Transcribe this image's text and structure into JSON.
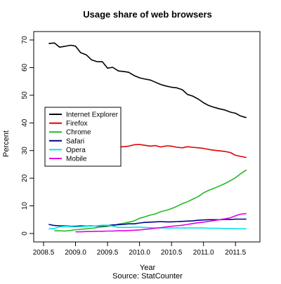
{
  "chart_data": {
    "type": "line",
    "title": "Usage share of web browsers",
    "xlabel": "Year",
    "ylabel": "Percent",
    "source": "Source: StatCounter",
    "xlim": [
      2008.5,
      2011.75
    ],
    "ylim": [
      0,
      70
    ],
    "xticks": [
      2008.5,
      2009.0,
      2009.5,
      2010.0,
      2010.5,
      2011.0,
      2011.5
    ],
    "xtick_labels": [
      "2008.5",
      "2009.0",
      "2009.5",
      "2010.0",
      "2010.5",
      "2011.0",
      "2011.5"
    ],
    "yticks": [
      0,
      10,
      20,
      30,
      40,
      50,
      60,
      70
    ],
    "ytick_labels": [
      "0",
      "10",
      "20",
      "30",
      "40",
      "50",
      "60",
      "70"
    ],
    "grid": false,
    "legend_position": "left",
    "series": [
      {
        "name": "Internet Explorer",
        "color": "#000000",
        "x": [
          2008.58,
          2008.67,
          2008.75,
          2008.83,
          2008.92,
          2009.0,
          2009.08,
          2009.17,
          2009.25,
          2009.33,
          2009.42,
          2009.5,
          2009.58,
          2009.67,
          2009.75,
          2009.83,
          2009.92,
          2010.0,
          2010.08,
          2010.17,
          2010.25,
          2010.33,
          2010.42,
          2010.5,
          2010.58,
          2010.67,
          2010.75,
          2010.83,
          2010.92,
          2011.0,
          2011.08,
          2011.17,
          2011.25,
          2011.33,
          2011.42,
          2011.5,
          2011.58,
          2011.67
        ],
        "values": [
          68.7,
          68.9,
          67.4,
          67.7,
          68.1,
          67.8,
          65.4,
          64.6,
          62.8,
          62.2,
          62.1,
          59.8,
          60.1,
          58.8,
          58.6,
          58.3,
          57.1,
          56.3,
          55.9,
          55.5,
          54.7,
          53.9,
          53.3,
          52.9,
          52.7,
          52.0,
          50.3,
          49.7,
          48.6,
          47.3,
          46.3,
          45.6,
          45.1,
          44.7,
          43.9,
          43.5,
          42.5,
          41.9
        ]
      },
      {
        "name": "Firefox",
        "color": "#dd0000",
        "x": [
          2008.58,
          2008.67,
          2008.75,
          2008.83,
          2008.92,
          2009.0,
          2009.08,
          2009.17,
          2009.25,
          2009.33,
          2009.42,
          2009.5,
          2009.58,
          2009.67,
          2009.75,
          2009.83,
          2009.92,
          2010.0,
          2010.08,
          2010.17,
          2010.25,
          2010.33,
          2010.42,
          2010.5,
          2010.58,
          2010.67,
          2010.75,
          2010.83,
          2010.92,
          2011.0,
          2011.08,
          2011.17,
          2011.25,
          2011.33,
          2011.42,
          2011.5,
          2011.58,
          2011.67
        ],
        "values": [
          26.1,
          26.0,
          25.8,
          25.9,
          26.2,
          26.1,
          26.6,
          27.2,
          29.2,
          29.4,
          30.3,
          30.4,
          31.1,
          31.3,
          31.4,
          31.6,
          32.1,
          32.2,
          31.9,
          31.6,
          31.8,
          31.3,
          31.7,
          31.6,
          31.2,
          31.0,
          31.4,
          31.2,
          31.0,
          30.8,
          30.4,
          30.1,
          29.9,
          29.7,
          29.3,
          28.3,
          27.9,
          27.5
        ]
      },
      {
        "name": "Chrome",
        "color": "#22bb22",
        "x": [
          2008.67,
          2008.75,
          2008.83,
          2008.92,
          2009.0,
          2009.08,
          2009.17,
          2009.25,
          2009.33,
          2009.42,
          2009.5,
          2009.58,
          2009.67,
          2009.75,
          2009.83,
          2009.92,
          2010.0,
          2010.08,
          2010.17,
          2010.25,
          2010.33,
          2010.42,
          2010.5,
          2010.58,
          2010.67,
          2010.75,
          2010.83,
          2010.92,
          2011.0,
          2011.08,
          2011.17,
          2011.25,
          2011.33,
          2011.42,
          2011.5,
          2011.58,
          2011.67
        ],
        "values": [
          1.0,
          1.0,
          0.9,
          1.1,
          1.4,
          1.5,
          1.7,
          1.9,
          2.1,
          2.4,
          2.6,
          2.8,
          3.4,
          3.7,
          4.1,
          4.6,
          5.5,
          6.0,
          6.7,
          7.1,
          7.9,
          8.4,
          9.0,
          9.8,
          10.8,
          11.5,
          12.4,
          13.4,
          14.7,
          15.6,
          16.4,
          17.2,
          18.0,
          19.1,
          20.2,
          21.6,
          23.0
        ]
      },
      {
        "name": "Safari",
        "color": "#00008b",
        "x": [
          2008.58,
          2008.67,
          2008.75,
          2008.83,
          2008.92,
          2009.0,
          2009.08,
          2009.17,
          2009.25,
          2009.33,
          2009.42,
          2009.5,
          2009.58,
          2009.67,
          2009.75,
          2009.83,
          2009.92,
          2010.0,
          2010.08,
          2010.17,
          2010.25,
          2010.33,
          2010.42,
          2010.5,
          2010.58,
          2010.67,
          2010.75,
          2010.83,
          2010.92,
          2011.0,
          2011.08,
          2011.17,
          2011.25,
          2011.33,
          2011.42,
          2011.5,
          2011.58,
          2011.67
        ],
        "values": [
          3.3,
          2.9,
          2.8,
          2.8,
          2.6,
          2.6,
          2.8,
          2.7,
          2.8,
          2.7,
          2.8,
          2.9,
          3.1,
          3.2,
          3.3,
          3.5,
          3.5,
          3.8,
          4.0,
          4.1,
          4.2,
          4.3,
          4.2,
          4.2,
          4.3,
          4.4,
          4.5,
          4.6,
          4.8,
          4.9,
          5.0,
          5.0,
          5.0,
          5.1,
          5.1,
          5.2,
          5.2,
          5.2
        ]
      },
      {
        "name": "Opera",
        "color": "#00e5e5",
        "x": [
          2008.58,
          2008.67,
          2008.75,
          2008.83,
          2008.92,
          2009.0,
          2009.08,
          2009.17,
          2009.25,
          2009.33,
          2009.42,
          2009.5,
          2009.58,
          2009.67,
          2009.75,
          2009.83,
          2009.92,
          2010.0,
          2010.08,
          2010.17,
          2010.25,
          2010.33,
          2010.42,
          2010.5,
          2010.58,
          2010.67,
          2010.75,
          2010.83,
          2010.92,
          2011.0,
          2011.08,
          2011.17,
          2011.25,
          2011.33,
          2011.42,
          2011.5,
          2011.58,
          2011.67
        ],
        "values": [
          1.7,
          1.8,
          2.4,
          2.6,
          2.5,
          2.4,
          2.5,
          2.6,
          2.7,
          2.8,
          3.0,
          3.0,
          2.7,
          2.2,
          2.2,
          2.2,
          2.3,
          2.3,
          2.2,
          2.1,
          2.0,
          2.0,
          2.0,
          2.0,
          2.0,
          2.0,
          2.0,
          2.0,
          2.0,
          2.0,
          1.9,
          1.9,
          1.9,
          1.8,
          1.8,
          1.7,
          1.7,
          1.7
        ]
      },
      {
        "name": "Mobile",
        "color": "#e600e6",
        "x": [
          2009.0,
          2009.08,
          2009.17,
          2009.25,
          2009.33,
          2009.42,
          2009.5,
          2009.58,
          2009.67,
          2009.75,
          2009.83,
          2009.92,
          2010.0,
          2010.08,
          2010.17,
          2010.25,
          2010.33,
          2010.42,
          2010.5,
          2010.58,
          2010.67,
          2010.75,
          2010.83,
          2010.92,
          2011.0,
          2011.08,
          2011.17,
          2011.25,
          2011.33,
          2011.42,
          2011.5,
          2011.58,
          2011.67
        ],
        "values": [
          0.6,
          0.6,
          0.7,
          0.7,
          0.8,
          0.8,
          0.9,
          0.9,
          1.0,
          1.0,
          1.1,
          1.2,
          1.3,
          1.5,
          1.7,
          1.9,
          2.1,
          2.4,
          2.6,
          2.8,
          3.0,
          3.3,
          3.6,
          3.9,
          4.1,
          4.4,
          4.7,
          5.0,
          5.3,
          5.7,
          6.4,
          7.0,
          7.2
        ]
      }
    ]
  }
}
